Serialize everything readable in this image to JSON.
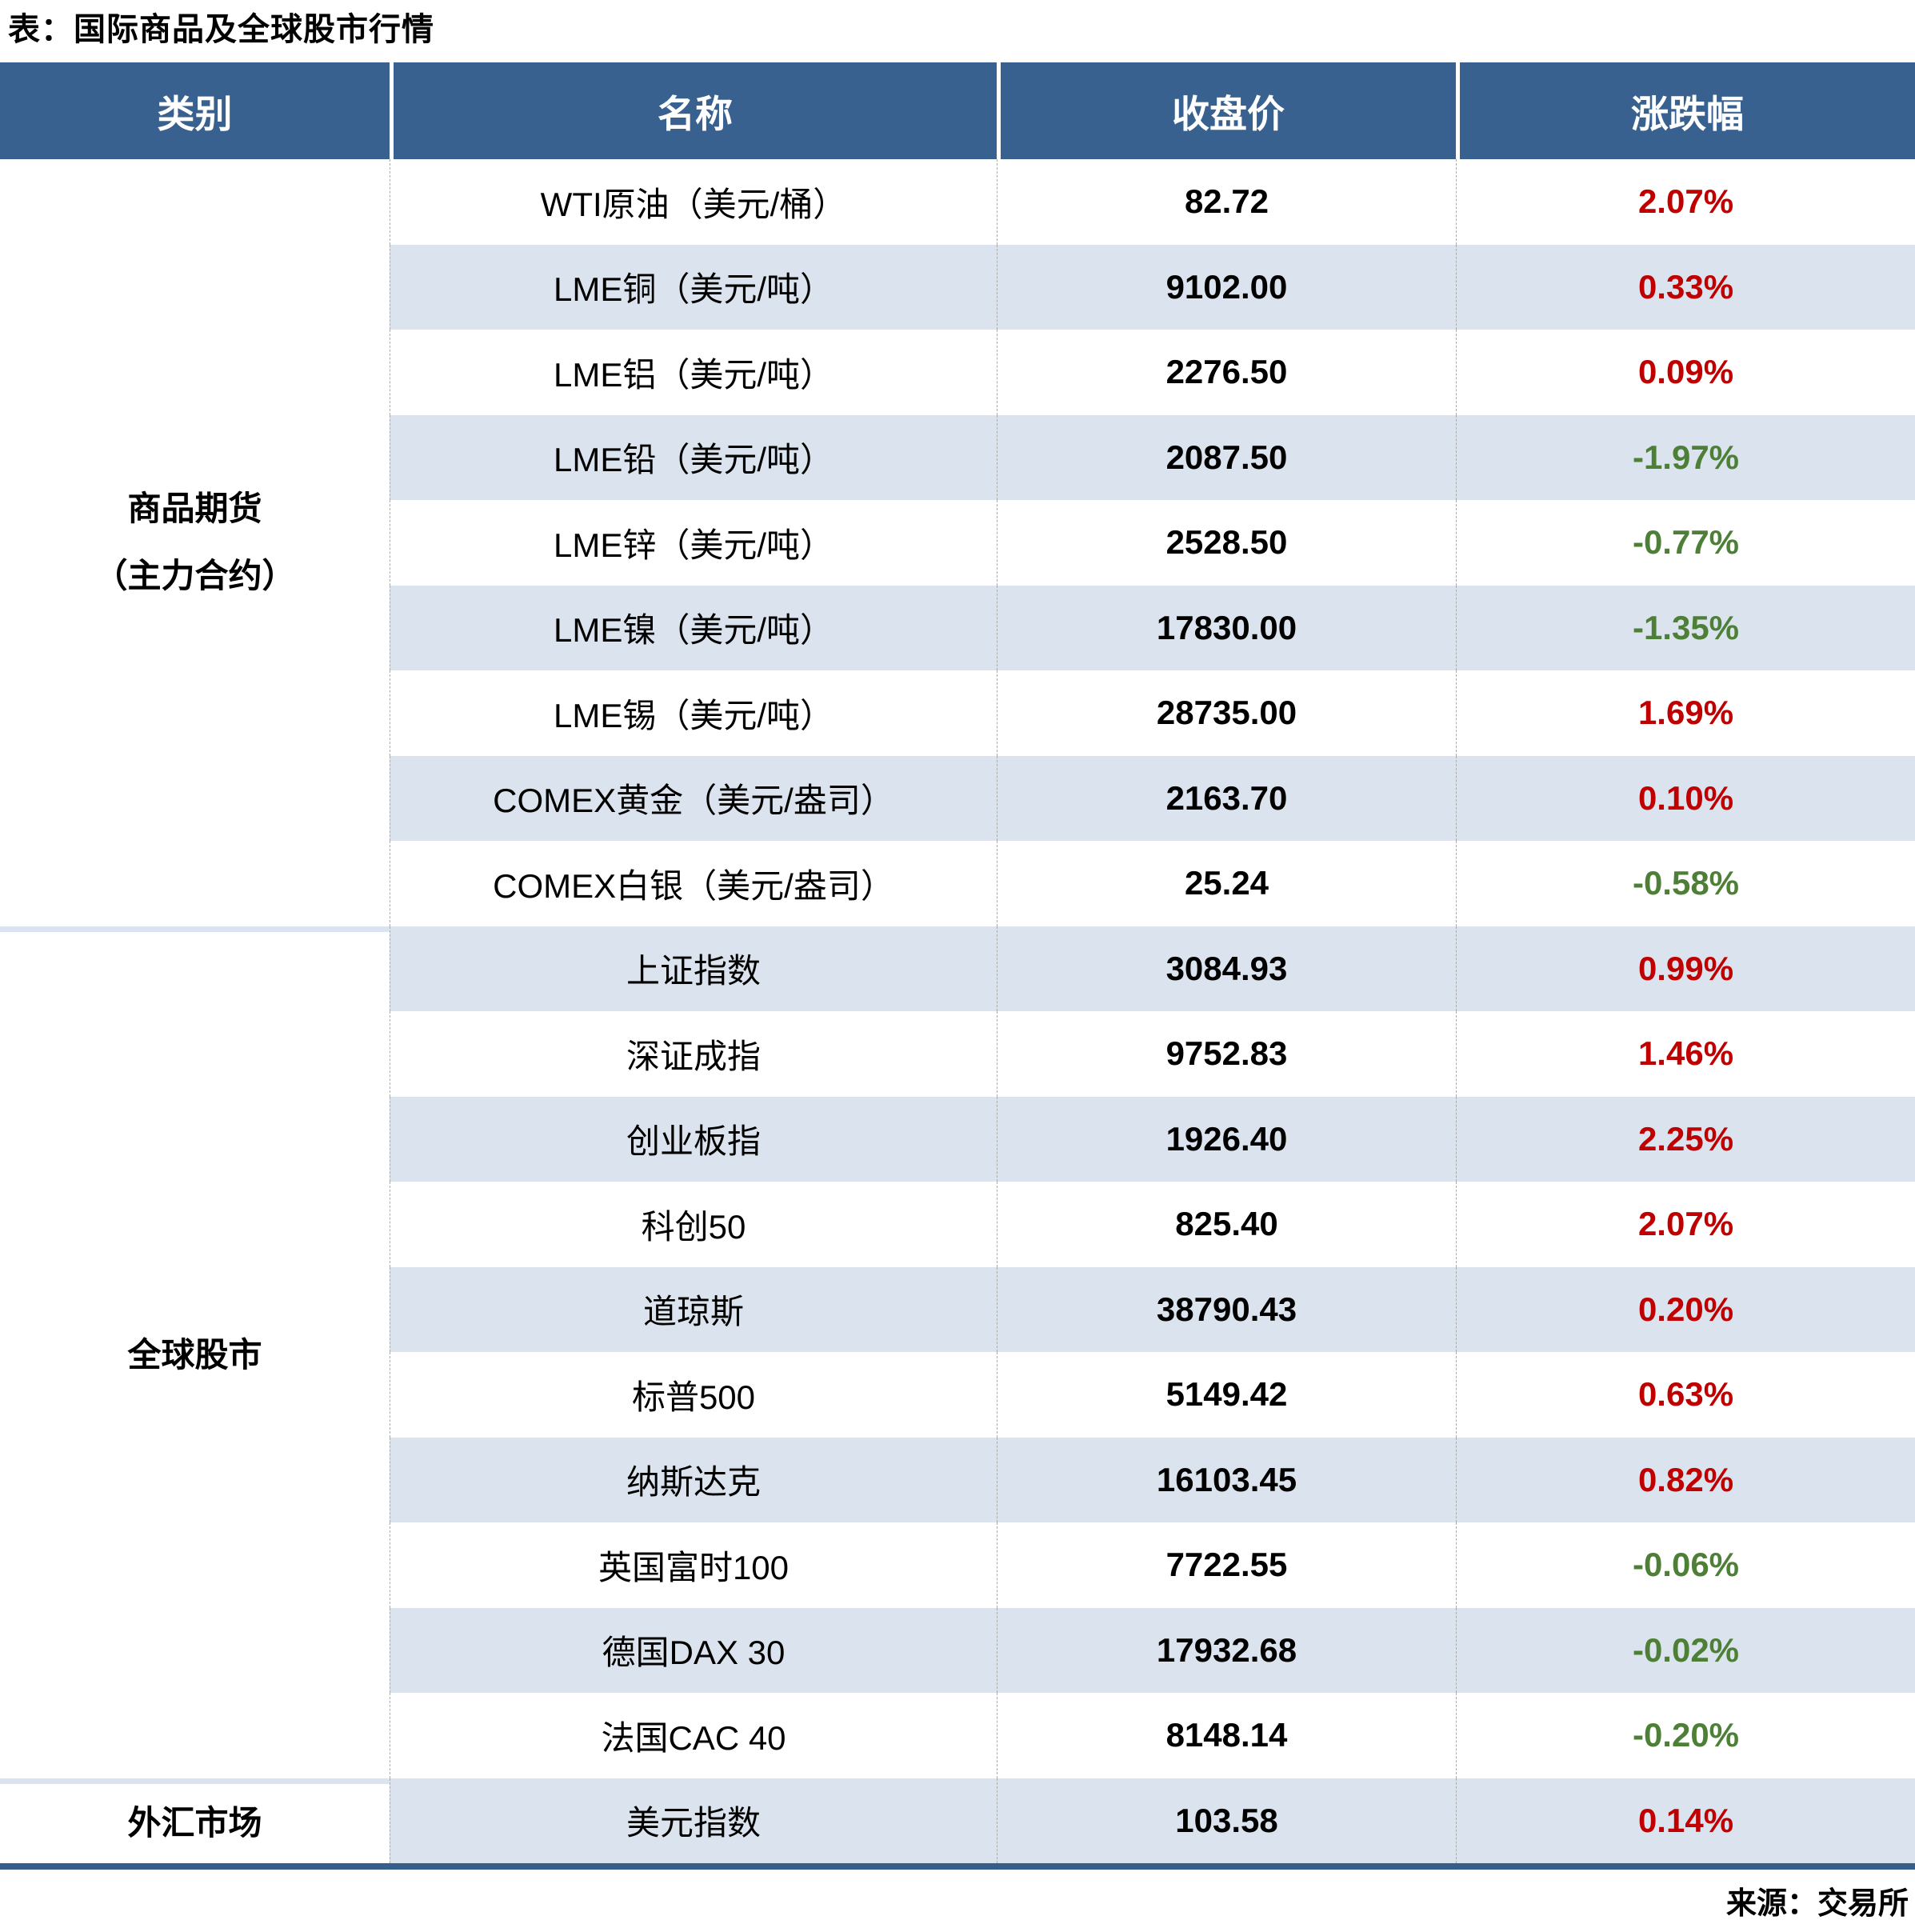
{
  "title": "表：国际商品及全球股市行情",
  "source": "来源：交易所",
  "colors": {
    "header_bg": "#38618F",
    "stripe_bg": "#DBE3EE",
    "bottom_bar": "#355E8B",
    "up_red": "#C00000",
    "down_green": "#4E7F37"
  },
  "table": {
    "headers": [
      "类别",
      "名称",
      "收盘价",
      "涨跌幅"
    ],
    "categories": [
      {
        "lines": [
          "商品期货",
          "（主力合约）"
        ],
        "row_span": 9
      },
      {
        "lines": [
          "全球股市"
        ],
        "row_span": 10
      },
      {
        "lines": [
          "外汇市场"
        ],
        "row_span": 1
      }
    ],
    "rows": [
      {
        "name": "WTI原油（美元/桶）",
        "close": "82.72",
        "change": "2.07%",
        "dir": "up"
      },
      {
        "name": "LME铜（美元/吨）",
        "close": "9102.00",
        "change": "0.33%",
        "dir": "up"
      },
      {
        "name": "LME铝（美元/吨）",
        "close": "2276.50",
        "change": "0.09%",
        "dir": "up"
      },
      {
        "name": "LME铅（美元/吨）",
        "close": "2087.50",
        "change": "-1.97%",
        "dir": "down"
      },
      {
        "name": "LME锌（美元/吨）",
        "close": "2528.50",
        "change": "-0.77%",
        "dir": "down"
      },
      {
        "name": "LME镍（美元/吨）",
        "close": "17830.00",
        "change": "-1.35%",
        "dir": "down"
      },
      {
        "name": "LME锡（美元/吨）",
        "close": "28735.00",
        "change": "1.69%",
        "dir": "up"
      },
      {
        "name": "COMEX黄金（美元/盎司）",
        "close": "2163.70",
        "change": "0.10%",
        "dir": "up"
      },
      {
        "name": "COMEX白银（美元/盎司）",
        "close": "25.24",
        "change": "-0.58%",
        "dir": "down"
      },
      {
        "name": "上证指数",
        "close": "3084.93",
        "change": "0.99%",
        "dir": "up"
      },
      {
        "name": "深证成指",
        "close": "9752.83",
        "change": "1.46%",
        "dir": "up"
      },
      {
        "name": "创业板指",
        "close": "1926.40",
        "change": "2.25%",
        "dir": "up"
      },
      {
        "name": "科创50",
        "close": "825.40",
        "change": "2.07%",
        "dir": "up"
      },
      {
        "name": "道琼斯",
        "close": "38790.43",
        "change": "0.20%",
        "dir": "up"
      },
      {
        "name": "标普500",
        "close": "5149.42",
        "change": "0.63%",
        "dir": "up"
      },
      {
        "name": "纳斯达克",
        "close": "16103.45",
        "change": "0.82%",
        "dir": "up"
      },
      {
        "name": "英国富时100",
        "close": "7722.55",
        "change": "-0.06%",
        "dir": "down"
      },
      {
        "name": "德国DAX 30",
        "close": "17932.68",
        "change": "-0.02%",
        "dir": "down"
      },
      {
        "name": "法国CAC 40",
        "close": "8148.14",
        "change": "-0.20%",
        "dir": "down"
      },
      {
        "name": "美元指数",
        "close": "103.58",
        "change": "0.14%",
        "dir": "up"
      }
    ]
  }
}
